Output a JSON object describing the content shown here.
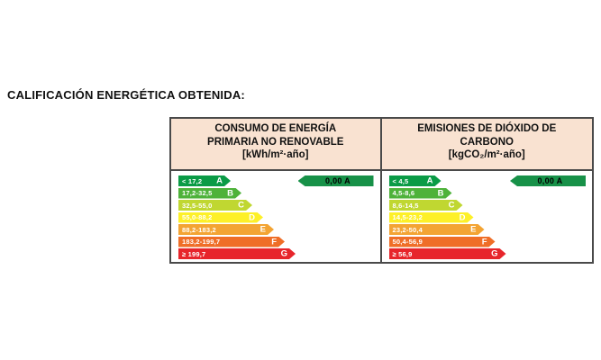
{
  "page": {
    "title": "CALIFICACIÓN ENERGÉTICA OBTENIDA:",
    "background": "#ffffff"
  },
  "colors": {
    "table_border": "#4a4a4a",
    "header_bg": "#f9e2d1",
    "indicator_green": "#179148",
    "arrow_text": "#ffffff",
    "indicator_text": "#000000"
  },
  "table": {
    "columns": [
      {
        "id": "consumo-energia",
        "header": [
          "CONSUMO DE ENERGÍA",
          "PRIMARIA NO RENOVABLE",
          "[kWh/m²·año]"
        ],
        "indicator_value": "0,00 A",
        "scale": [
          {
            "range": "< 17,2",
            "letter": "A",
            "color": "#0a9b46",
            "width": 58
          },
          {
            "range": "17,2-32,5",
            "letter": "B",
            "color": "#4eb23a",
            "width": 70
          },
          {
            "range": "32,5-55,0",
            "letter": "C",
            "color": "#c0d731",
            "width": 82
          },
          {
            "range": "55,0-88,2",
            "letter": "D",
            "color": "#fdf028",
            "width": 94
          },
          {
            "range": "88,2-183,2",
            "letter": "E",
            "color": "#f3a433",
            "width": 106
          },
          {
            "range": "183,2-199,7",
            "letter": "F",
            "color": "#ef6e27",
            "width": 118
          },
          {
            "range": "≥ 199,7",
            "letter": "G",
            "color": "#e7252b",
            "width": 130
          }
        ]
      },
      {
        "id": "emisiones-co2",
        "header": [
          "EMISIONES DE DIÓXIDO DE",
          "CARBONO",
          "[kgCO₂/m²·año]"
        ],
        "indicator_value": "0,00 A",
        "scale": [
          {
            "range": "< 4,5",
            "letter": "A",
            "color": "#0a9b46",
            "width": 58
          },
          {
            "range": "4,5-8,6",
            "letter": "B",
            "color": "#4eb23a",
            "width": 70
          },
          {
            "range": "8,6-14,5",
            "letter": "C",
            "color": "#c0d731",
            "width": 82
          },
          {
            "range": "14,5-23,2",
            "letter": "D",
            "color": "#fdf028",
            "width": 94
          },
          {
            "range": "23,2-50,4",
            "letter": "E",
            "color": "#f3a433",
            "width": 106
          },
          {
            "range": "50,4-56,9",
            "letter": "F",
            "color": "#ef6e27",
            "width": 118
          },
          {
            "range": "≥ 56,9",
            "letter": "G",
            "color": "#e7252b",
            "width": 130
          }
        ]
      }
    ]
  }
}
